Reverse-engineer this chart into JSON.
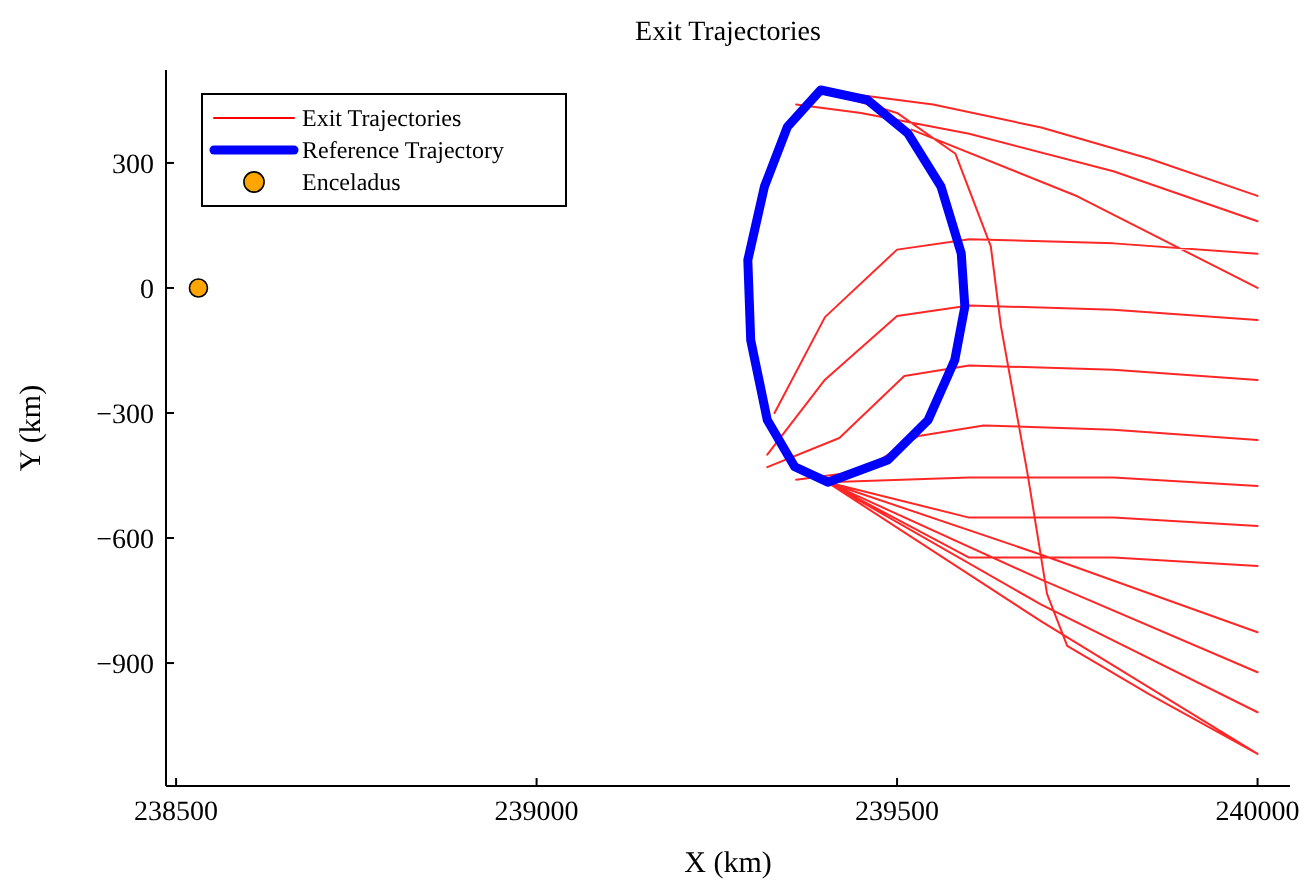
{
  "chart_data": {
    "type": "line",
    "title": "Exit Trajectories",
    "xlabel": "X (km)",
    "ylabel": "Y (km)",
    "xlim": [
      238486,
      240045
    ],
    "xticks": [
      238500,
      239000,
      239500,
      240000
    ],
    "ylim": [
      -1195,
      523
    ],
    "yticks": [
      {
        "value": -900,
        "label": "−900"
      },
      {
        "value": -600,
        "label": "−600"
      },
      {
        "value": -300,
        "label": "−300"
      },
      0,
      300
    ],
    "grid": false,
    "legend": "top left",
    "series": [
      {
        "name": "Exit Trajectories",
        "color": "#ff0000",
        "x": [
          239394,
          239550,
          239700,
          239850,
          240000,
          null,
          239360,
          239450,
          239600,
          239800,
          240000,
          null,
          239394,
          239500,
          239581,
          239630,
          239644,
          239681,
          239708,
          239736,
          239850,
          240000,
          null,
          239520,
          239750,
          240000,
          null,
          239330,
          239400,
          239500,
          239600,
          239800,
          240000,
          null,
          239320,
          239400,
          239500,
          239600,
          239800,
          240000,
          null,
          239320,
          239420,
          239510,
          239600,
          239800,
          240000,
          null,
          239360,
          239450,
          239530,
          239620,
          239800,
          240000,
          null,
          239403,
          239600,
          239800,
          240000,
          null,
          239403,
          239600,
          239800,
          240000,
          null,
          239403,
          239600,
          239800,
          240000,
          null,
          239403,
          239700,
          240000,
          null,
          239403,
          239700,
          240000,
          null,
          239403,
          239700,
          240000,
          null,
          239403,
          239700,
          240000
        ],
        "values": [
          475,
          440,
          385,
          310,
          221,
          null,
          440,
          420,
          370,
          280,
          160,
          null,
          475,
          420,
          322,
          100,
          -91,
          -446,
          -734,
          -859,
          -975,
          -1118,
          null,
          380,
          220,
          0,
          null,
          -300,
          -70,
          92,
          117,
          107,
          82,
          null,
          -400,
          -220,
          -67,
          -42,
          -52,
          -77,
          null,
          -430,
          -360,
          -211,
          -186,
          -196,
          -221,
          null,
          -460,
          -440,
          -355,
          -330,
          -340,
          -365,
          null,
          -466,
          -455,
          -455,
          -475,
          null,
          -466,
          -551,
          -551,
          -571,
          null,
          -466,
          -647,
          -647,
          -667,
          null,
          -466,
          -640,
          -826,
          null,
          -466,
          -700,
          -922,
          null,
          -466,
          -760,
          -1018,
          null,
          -466,
          -800,
          -1118
        ]
      },
      {
        "name": "Reference Trajectory",
        "color": "#0000ff",
        "x": [
          239394,
          239459,
          239515,
          239561,
          239589,
          239594,
          null,
          239594,
          239580,
          239543,
          239487,
          239404,
          null,
          239404,
          239358,
          239320,
          239297,
          239293,
          null,
          239293,
          239316,
          239348,
          239394
        ],
        "values": [
          475,
          451,
          371,
          243,
          83,
          -45,
          null,
          -45,
          -173,
          -317,
          -413,
          -466,
          null,
          -466,
          -429,
          -317,
          -125,
          67,
          null,
          67,
          243,
          387,
          475
        ]
      },
      {
        "name": "Enceladus",
        "type": "scatter",
        "color": "#ffa500",
        "marker": "circle",
        "x": [
          238531
        ],
        "values": [
          0
        ]
      }
    ]
  }
}
